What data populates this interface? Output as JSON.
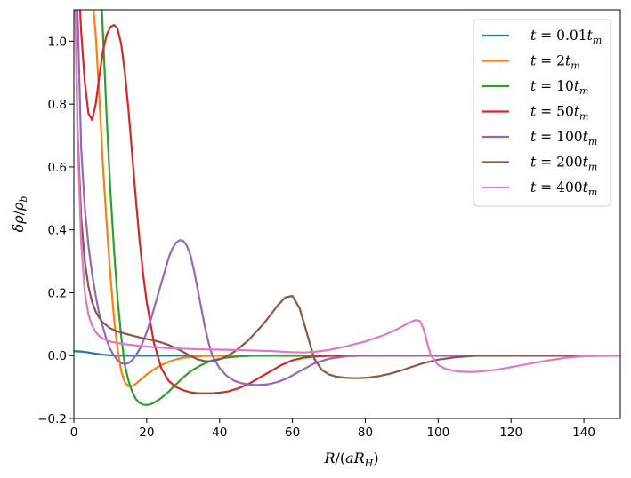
{
  "chart_data": {
    "type": "line",
    "title": "",
    "xlabel": "R/(aR_H)",
    "ylabel": "δρ/ρ_b",
    "xlim": [
      0,
      150
    ],
    "ylim": [
      -0.2,
      1.1
    ],
    "xticks": [
      0,
      20,
      40,
      60,
      80,
      100,
      120,
      140
    ],
    "yticks": [
      -0.2,
      0.0,
      0.2,
      0.4,
      0.6,
      0.8,
      1.0
    ],
    "xtick_labels": [
      "0",
      "20",
      "40",
      "60",
      "80",
      "100",
      "120",
      "140"
    ],
    "ytick_labels": [
      "−0.2",
      "0.0",
      "0.2",
      "0.4",
      "0.6",
      "0.8",
      "1.0"
    ],
    "grid": false,
    "legend_position": "top-right",
    "series": [
      {
        "name": "t = 0.01t_m",
        "color": "#1f77b4",
        "x": [
          0,
          2,
          4,
          6,
          8,
          10,
          12,
          15,
          20,
          150
        ],
        "y": [
          0.014,
          0.013,
          0.01,
          0.006,
          0.003,
          0.001,
          0.0,
          0.0,
          0.0,
          0.0
        ]
      },
      {
        "name": "t = 2t_m",
        "color": "#ff7f0e",
        "x": [
          5,
          6,
          7,
          8,
          9,
          10,
          11,
          12,
          13,
          14,
          15,
          16,
          17,
          18,
          20,
          22,
          24,
          26,
          28,
          30,
          33,
          36,
          40,
          45,
          50,
          150
        ],
        "y": [
          1.15,
          1.02,
          0.82,
          0.6,
          0.42,
          0.26,
          0.12,
          0.02,
          -0.05,
          -0.085,
          -0.098,
          -0.096,
          -0.09,
          -0.08,
          -0.06,
          -0.044,
          -0.03,
          -0.02,
          -0.012,
          -0.007,
          -0.003,
          -0.001,
          0.0,
          0.0,
          0.0,
          0.0
        ]
      },
      {
        "name": "t = 10t_m",
        "color": "#2ca02c",
        "x": [
          7.5,
          8,
          9,
          10,
          11,
          12,
          13,
          14,
          15,
          16,
          17,
          18,
          19,
          20,
          21,
          22,
          24,
          26,
          28,
          30,
          32,
          35,
          38,
          42,
          46,
          50,
          55,
          60,
          150
        ],
        "y": [
          1.15,
          1.02,
          0.76,
          0.53,
          0.34,
          0.18,
          0.06,
          -0.03,
          -0.08,
          -0.115,
          -0.138,
          -0.15,
          -0.156,
          -0.157,
          -0.155,
          -0.15,
          -0.135,
          -0.115,
          -0.092,
          -0.07,
          -0.05,
          -0.03,
          -0.015,
          -0.006,
          -0.002,
          0.0,
          0.0,
          0.0,
          0.0
        ]
      },
      {
        "name": "t = 50t_m",
        "color": "#d62728",
        "x": [
          1.5,
          2,
          3,
          4,
          5,
          6,
          7,
          8,
          9,
          10,
          11,
          12,
          13,
          14,
          15,
          16,
          17,
          18,
          19,
          20,
          22,
          24,
          26,
          28,
          30,
          32,
          34,
          36,
          38,
          40,
          42,
          45,
          48,
          51,
          54,
          57,
          60,
          63,
          66,
          70,
          75,
          80,
          150
        ],
        "y": [
          1.15,
          1.03,
          0.87,
          0.77,
          0.75,
          0.8,
          0.89,
          0.97,
          1.02,
          1.045,
          1.052,
          1.04,
          0.99,
          0.9,
          0.78,
          0.64,
          0.5,
          0.37,
          0.26,
          0.17,
          0.04,
          -0.04,
          -0.08,
          -0.1,
          -0.11,
          -0.117,
          -0.12,
          -0.12,
          -0.12,
          -0.118,
          -0.115,
          -0.105,
          -0.09,
          -0.07,
          -0.05,
          -0.03,
          -0.015,
          -0.007,
          -0.003,
          -0.001,
          0.0,
          0.0,
          0.0
        ]
      },
      {
        "name": "t = 100t_m",
        "color": "#9467bd",
        "x": [
          0.8,
          1,
          2,
          3,
          4,
          5,
          6,
          7,
          8,
          9,
          10,
          11,
          12,
          13,
          14,
          15,
          16,
          17,
          18,
          19,
          20,
          21,
          22,
          23,
          24,
          25,
          26,
          27,
          28,
          29,
          30,
          31,
          32,
          33,
          34,
          35,
          36,
          37,
          38,
          40,
          42,
          44,
          46,
          48,
          50,
          53,
          56,
          59,
          62,
          66,
          70,
          75,
          80,
          150
        ],
        "y": [
          1.15,
          1.1,
          0.66,
          0.47,
          0.35,
          0.26,
          0.19,
          0.13,
          0.09,
          0.05,
          0.02,
          0.0,
          -0.015,
          -0.024,
          -0.027,
          -0.024,
          -0.015,
          0.0,
          0.02,
          0.045,
          0.075,
          0.11,
          0.15,
          0.19,
          0.23,
          0.27,
          0.31,
          0.34,
          0.358,
          0.367,
          0.365,
          0.35,
          0.32,
          0.27,
          0.21,
          0.15,
          0.09,
          0.04,
          0.0,
          -0.04,
          -0.065,
          -0.08,
          -0.088,
          -0.092,
          -0.094,
          -0.092,
          -0.084,
          -0.07,
          -0.05,
          -0.025,
          -0.01,
          -0.002,
          0.0,
          0.0
        ]
      },
      {
        "name": "t = 200t_m",
        "color": "#8c564b",
        "x": [
          0.4,
          1,
          2,
          3,
          4,
          5,
          6,
          7,
          8,
          10,
          12,
          14,
          16,
          18,
          20,
          22,
          24,
          26,
          28,
          30,
          32,
          34,
          36,
          38,
          40,
          42,
          44,
          46,
          48,
          50,
          52,
          54,
          56,
          58,
          60,
          62,
          64,
          66,
          68,
          70,
          72,
          75,
          78,
          81,
          84,
          87,
          90,
          93,
          96,
          100,
          105,
          110,
          115,
          150
        ],
        "y": [
          1.15,
          0.72,
          0.44,
          0.3,
          0.22,
          0.17,
          0.14,
          0.12,
          0.105,
          0.087,
          0.077,
          0.07,
          0.064,
          0.058,
          0.053,
          0.048,
          0.042,
          0.034,
          0.024,
          0.012,
          -0.001,
          -0.012,
          -0.018,
          -0.018,
          -0.012,
          -0.002,
          0.012,
          0.03,
          0.05,
          0.075,
          0.1,
          0.13,
          0.16,
          0.185,
          0.19,
          0.15,
          0.07,
          -0.01,
          -0.045,
          -0.06,
          -0.067,
          -0.071,
          -0.072,
          -0.07,
          -0.065,
          -0.057,
          -0.047,
          -0.035,
          -0.024,
          -0.013,
          -0.005,
          -0.001,
          0.0,
          0.0
        ]
      },
      {
        "name": "t = 400t_m",
        "color": "#e377c2",
        "x": [
          0.3,
          1,
          2,
          3,
          4,
          5,
          6,
          7,
          8,
          10,
          12,
          15,
          18,
          22,
          26,
          30,
          35,
          40,
          45,
          50,
          55,
          60,
          63,
          66,
          70,
          75,
          80,
          85,
          88,
          90,
          92,
          93,
          94,
          95,
          96,
          97,
          98,
          100,
          102,
          104,
          106,
          108,
          110,
          113,
          116,
          120,
          125,
          130,
          135,
          140,
          150
        ],
        "y": [
          1.15,
          0.7,
          0.36,
          0.2,
          0.13,
          0.095,
          0.075,
          0.062,
          0.054,
          0.045,
          0.04,
          0.035,
          0.031,
          0.027,
          0.024,
          0.022,
          0.02,
          0.019,
          0.018,
          0.016,
          0.014,
          0.011,
          0.01,
          0.012,
          0.018,
          0.03,
          0.045,
          0.065,
          0.08,
          0.092,
          0.104,
          0.11,
          0.113,
          0.11,
          0.085,
          0.04,
          0.0,
          -0.03,
          -0.042,
          -0.048,
          -0.051,
          -0.052,
          -0.052,
          -0.049,
          -0.045,
          -0.037,
          -0.026,
          -0.016,
          -0.007,
          -0.002,
          0.0
        ]
      }
    ]
  },
  "legend": {
    "items": [
      {
        "t": "t",
        "eq": " = ",
        "coef": "0.01",
        "tm": "t",
        "sub": "m"
      },
      {
        "t": "t",
        "eq": " = ",
        "coef": "2",
        "tm": "t",
        "sub": "m"
      },
      {
        "t": "t",
        "eq": " = ",
        "coef": "10",
        "tm": "t",
        "sub": "m"
      },
      {
        "t": "t",
        "eq": " = ",
        "coef": "50",
        "tm": "t",
        "sub": "m"
      },
      {
        "t": "t",
        "eq": " = ",
        "coef": "100",
        "tm": "t",
        "sub": "m"
      },
      {
        "t": "t",
        "eq": " = ",
        "coef": "200",
        "tm": "t",
        "sub": "m"
      },
      {
        "t": "t",
        "eq": " = ",
        "coef": "400",
        "tm": "t",
        "sub": "m"
      }
    ]
  },
  "axis_text": {
    "xlabel_main": "R",
    "xlabel_open": "/(",
    "xlabel_a": "a",
    "xlabel_R": "R",
    "xlabel_sub": "H",
    "xlabel_close": ")",
    "ylabel_delta": "δρ",
    "ylabel_slash": "/",
    "ylabel_rho": "ρ",
    "ylabel_sub": "b"
  }
}
